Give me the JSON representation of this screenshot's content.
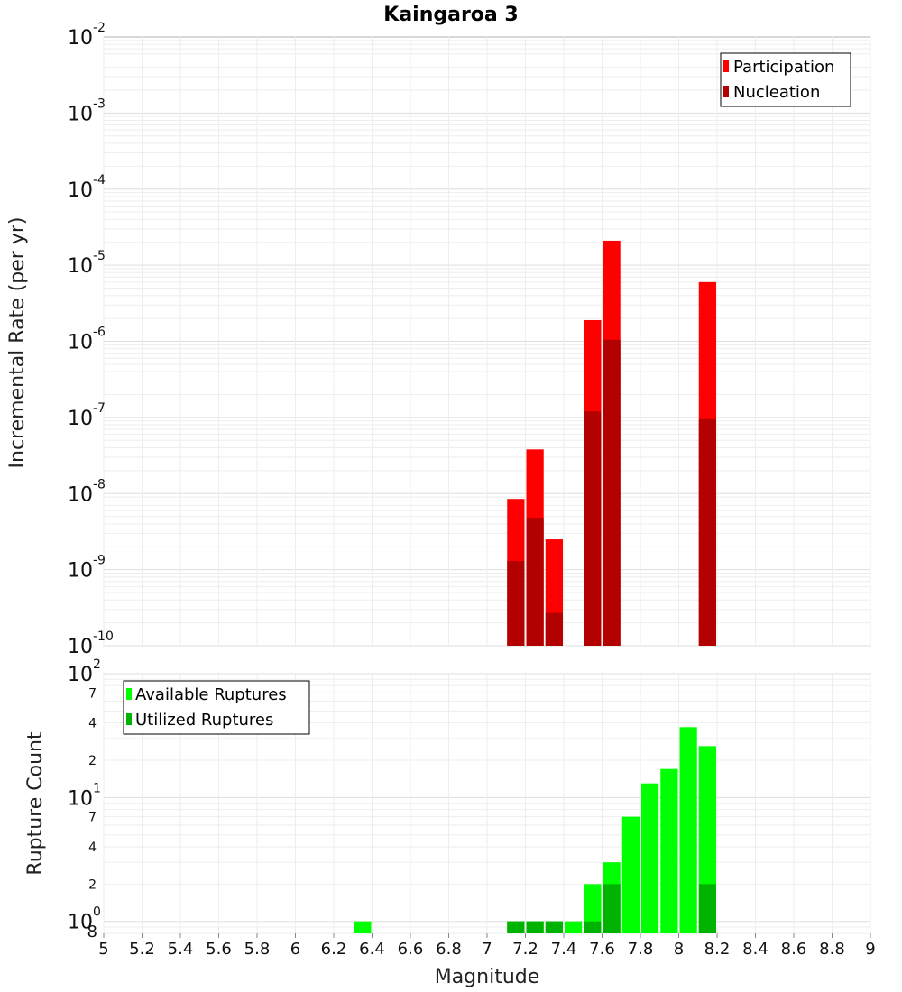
{
  "chart_data": [
    {
      "type": "bar",
      "title": "Kaingaroa 3",
      "xlabel": "Magnitude",
      "ylabel": "Incremental Rate (per yr)",
      "yscale": "log",
      "ylim": [
        1e-10,
        0.01
      ],
      "xlim": [
        5,
        9
      ],
      "bin_width": 0.1,
      "x": [
        7.15,
        7.25,
        7.35,
        7.55,
        7.65,
        8.15
      ],
      "series": [
        {
          "name": "Participation",
          "color": "#ff0000",
          "values": [
            8.5e-09,
            3.8e-08,
            2.5e-09,
            1.9e-06,
            2.1e-05,
            6e-06
          ]
        },
        {
          "name": "Nucleation",
          "color": "#b30000",
          "values": [
            1.3e-09,
            4.8e-09,
            2.7e-10,
            1.2e-07,
            1.05e-06,
            9.5e-08
          ]
        }
      ],
      "y_ticks": [
        {
          "base": "10",
          "exp": "-2"
        },
        {
          "base": "10",
          "exp": "-3"
        },
        {
          "base": "10",
          "exp": "-4"
        },
        {
          "base": "10",
          "exp": "-5"
        },
        {
          "base": "10",
          "exp": "-6"
        },
        {
          "base": "10",
          "exp": "-7"
        },
        {
          "base": "10",
          "exp": "-8"
        },
        {
          "base": "10",
          "exp": "-9"
        },
        {
          "base": "10",
          "exp": "-10"
        }
      ],
      "legend_position": "top-right",
      "grid": true
    },
    {
      "type": "bar",
      "xlabel": "Magnitude",
      "ylabel": "Rupture Count",
      "yscale": "log",
      "ylim": [
        0.8,
        100
      ],
      "xlim": [
        5,
        9
      ],
      "bin_width": 0.1,
      "x": [
        6.35,
        7.15,
        7.25,
        7.35,
        7.45,
        7.55,
        7.65,
        7.75,
        7.85,
        7.95,
        8.05,
        8.15
      ],
      "series": [
        {
          "name": "Available Ruptures",
          "color": "#00ff00",
          "values": [
            1,
            1,
            1,
            1,
            1,
            2,
            3,
            7,
            13,
            17,
            37,
            26
          ]
        },
        {
          "name": "Utilized Ruptures",
          "color": "#00b300",
          "values": [
            0,
            1,
            1,
            1,
            0,
            1,
            2,
            0,
            0,
            0,
            0,
            2
          ]
        }
      ],
      "y_major_ticks": [
        {
          "base": "10",
          "exp": "2",
          "value": 100
        },
        {
          "base": "10",
          "exp": "1",
          "value": 10
        },
        {
          "base": "10",
          "exp": "0",
          "value": 1
        }
      ],
      "y_minor_ticks": [
        {
          "label": "7",
          "value": 70
        },
        {
          "label": "4",
          "value": 40
        },
        {
          "label": "2",
          "value": 20
        },
        {
          "label": "7",
          "value": 7
        },
        {
          "label": "4",
          "value": 4
        },
        {
          "label": "2",
          "value": 2
        },
        {
          "label": "8",
          "value": 0.8
        }
      ],
      "x_ticks": [
        "5",
        "5.2",
        "5.4",
        "5.6",
        "5.8",
        "6",
        "6.2",
        "6.4",
        "6.6",
        "6.8",
        "7",
        "7.2",
        "7.4",
        "7.6",
        "7.8",
        "8",
        "8.2",
        "8.4",
        "8.6",
        "8.8",
        "9"
      ],
      "legend_position": "top-left",
      "grid": true
    }
  ]
}
